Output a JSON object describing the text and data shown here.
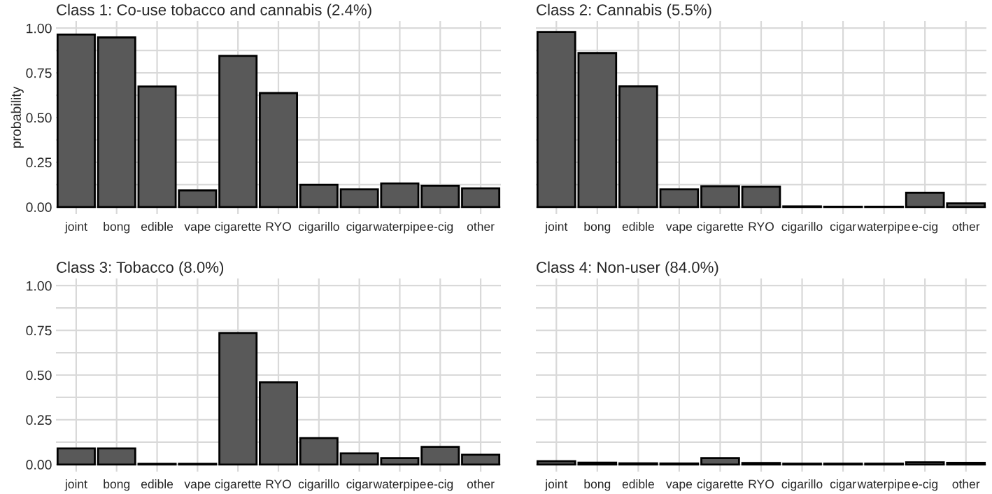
{
  "chart_data": [
    {
      "type": "bar",
      "title": "Class 1: Co-use tobacco and cannabis (2.4%)",
      "ylabel": "probability",
      "categories": [
        "joint",
        "bong",
        "edible",
        "vape",
        "cigarette",
        "RYO",
        "cigarillo",
        "cigar",
        "waterpipe",
        "e-cig",
        "other"
      ],
      "series": [
        {
          "color": "#595959",
          "values": [
            0.964,
            0.948,
            0.674,
            0.093,
            0.845,
            0.637,
            0.124,
            0.098,
            0.132,
            0.119,
            0.104
          ]
        }
      ],
      "ylim": [
        -0.04,
        1.04
      ],
      "yticks": [
        {
          "value": 0,
          "label": "0.00"
        },
        {
          "value": 0.125,
          "label": null
        },
        {
          "value": 0.25,
          "label": "0.25"
        },
        {
          "value": 0.375,
          "label": null
        },
        {
          "value": 0.5,
          "label": "0.50"
        },
        {
          "value": 0.625,
          "label": null
        },
        {
          "value": 0.75,
          "label": "0.75"
        },
        {
          "value": 0.875,
          "label": null
        },
        {
          "value": 1,
          "label": "1.00"
        }
      ],
      "grid": true
    },
    {
      "type": "bar",
      "title": "Class 2: Cannabis (5.5%)",
      "categories": [
        "joint",
        "bong",
        "edible",
        "vape",
        "cigarette",
        "RYO",
        "cigarillo",
        "cigar",
        "waterpipe",
        "e-cig",
        "other"
      ],
      "series": [
        {
          "color": "#595959",
          "values": [
            0.979,
            0.861,
            0.675,
            0.098,
            0.116,
            0.113,
            0.003,
            0.002,
            0.002,
            0.08,
            0.02
          ]
        }
      ],
      "ylim": [
        -0.04,
        1.04
      ],
      "yticks": [
        0,
        {
          "value": 0.125,
          "label": null
        },
        0.25,
        {
          "value": 0.375,
          "label": null
        },
        0.5,
        {
          "value": 0.625,
          "label": null
        },
        0.75,
        {
          "value": 0.875,
          "label": null
        },
        1
      ],
      "grid": true,
      "tick_labels": "x"
    },
    {
      "type": "bar",
      "title": "Class 3: Tobacco (8.0%)",
      "categories": [
        "joint",
        "bong",
        "edible",
        "vape",
        "cigarette",
        "RYO",
        "cigarillo",
        "cigar",
        "waterpipe",
        "e-cig",
        "other"
      ],
      "series": [
        {
          "color": "#595959",
          "values": [
            0.09,
            0.09,
            0.003,
            0.003,
            0.735,
            0.459,
            0.147,
            0.062,
            0.036,
            0.098,
            0.054
          ]
        }
      ],
      "ylim": [
        -0.04,
        1.04
      ],
      "yticks": [
        {
          "value": 0,
          "label": "0.00"
        },
        {
          "value": 0.125,
          "label": null
        },
        {
          "value": 0.25,
          "label": "0.25"
        },
        {
          "value": 0.375,
          "label": null
        },
        {
          "value": 0.5,
          "label": "0.50"
        },
        {
          "value": 0.625,
          "label": null
        },
        {
          "value": 0.75,
          "label": "0.75"
        },
        {
          "value": 0.875,
          "label": null
        },
        {
          "value": 1,
          "label": "1.00"
        }
      ],
      "grid": true
    },
    {
      "type": "bar",
      "title": "Class 4: Non-user (84.0%)",
      "categories": [
        "joint",
        "bong",
        "edible",
        "vape",
        "cigarette",
        "RYO",
        "cigarillo",
        "cigar",
        "waterpipe",
        "e-cig",
        "other"
      ],
      "series": [
        {
          "color": "#595959",
          "values": [
            0.018,
            0.01,
            0.006,
            0.005,
            0.036,
            0.008,
            0.004,
            0.004,
            0.004,
            0.012,
            0.009
          ]
        }
      ],
      "ylim": [
        -0.04,
        1.04
      ],
      "yticks": [
        0,
        {
          "value": 0.125,
          "label": null
        },
        0.25,
        {
          "value": 0.375,
          "label": null
        },
        0.5,
        {
          "value": 0.625,
          "label": null
        },
        0.75,
        {
          "value": 0.875,
          "label": null
        },
        1
      ],
      "grid": true,
      "tick_labels": "x"
    }
  ]
}
